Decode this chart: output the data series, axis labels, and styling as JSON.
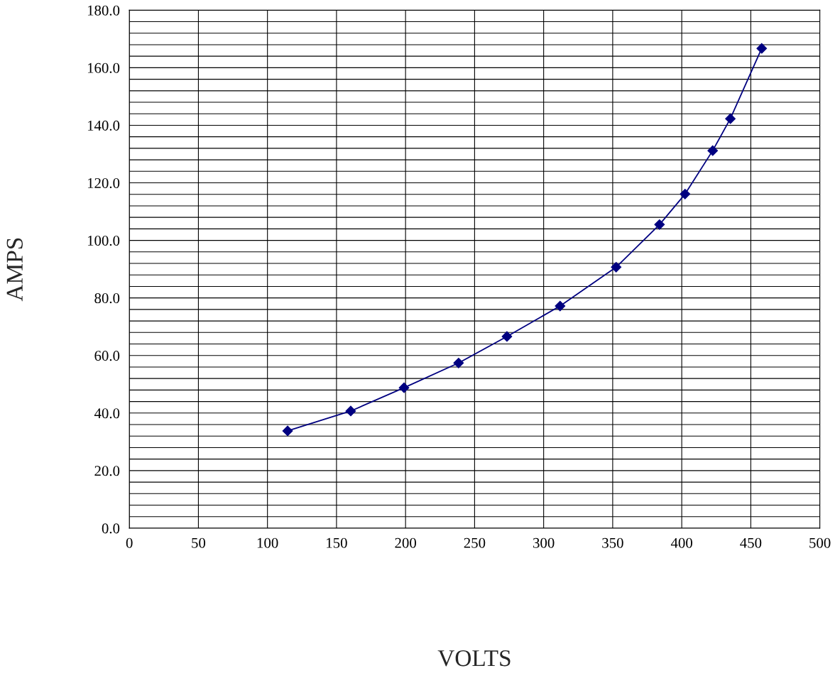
{
  "chart_data": {
    "type": "line",
    "xlabel": "VOLTS",
    "ylabel": "AMPS",
    "x": [
      114.6,
      160.3,
      198.9,
      238.4,
      273.4,
      311.9,
      352.5,
      383.9,
      402.4,
      422.4,
      435.2,
      457.9
    ],
    "series": [
      {
        "color": "#000080",
        "values": [
          33.8,
          40.7,
          48.8,
          57.4,
          66.6,
          77.2,
          90.7,
          105.5,
          116.1,
          131.2,
          142.3,
          166.7
        ]
      }
    ],
    "marker": "diamond",
    "line_style": "solid",
    "grid": true,
    "xlim": [
      0,
      500
    ],
    "xticks": [
      0,
      50,
      100,
      150,
      200,
      250,
      300,
      350,
      400,
      450,
      500
    ],
    "ylim": [
      0,
      180
    ],
    "yticks": [
      {
        "value": 0,
        "label": "0.0"
      },
      {
        "value": 4,
        "label": null
      },
      {
        "value": 8,
        "label": null
      },
      {
        "value": 12,
        "label": null
      },
      {
        "value": 16,
        "label": null
      },
      {
        "value": 20,
        "label": "20.0"
      },
      {
        "value": 24,
        "label": null
      },
      {
        "value": 28,
        "label": null
      },
      {
        "value": 32,
        "label": null
      },
      {
        "value": 36,
        "label": null
      },
      {
        "value": 40,
        "label": "40.0"
      },
      {
        "value": 44,
        "label": null
      },
      {
        "value": 48,
        "label": null
      },
      {
        "value": 52,
        "label": null
      },
      {
        "value": 56,
        "label": null
      },
      {
        "value": 60,
        "label": "60.0"
      },
      {
        "value": 64,
        "label": null
      },
      {
        "value": 68,
        "label": null
      },
      {
        "value": 72,
        "label": null
      },
      {
        "value": 76,
        "label": null
      },
      {
        "value": 80,
        "label": "80.0"
      },
      {
        "value": 84,
        "label": null
      },
      {
        "value": 88,
        "label": null
      },
      {
        "value": 92,
        "label": null
      },
      {
        "value": 96,
        "label": null
      },
      {
        "value": 100,
        "label": "100.0"
      },
      {
        "value": 104,
        "label": null
      },
      {
        "value": 108,
        "label": null
      },
      {
        "value": 112,
        "label": null
      },
      {
        "value": 116,
        "label": null
      },
      {
        "value": 120,
        "label": "120.0"
      },
      {
        "value": 124,
        "label": null
      },
      {
        "value": 128,
        "label": null
      },
      {
        "value": 132,
        "label": null
      },
      {
        "value": 136,
        "label": null
      },
      {
        "value": 140,
        "label": "140.0"
      },
      {
        "value": 144,
        "label": null
      },
      {
        "value": 148,
        "label": null
      },
      {
        "value": 152,
        "label": null
      },
      {
        "value": 156,
        "label": null
      },
      {
        "value": 160,
        "label": "160.0"
      },
      {
        "value": 164,
        "label": null
      },
      {
        "value": 168,
        "label": null
      },
      {
        "value": 172,
        "label": null
      },
      {
        "value": 176,
        "label": null
      },
      {
        "value": 180,
        "label": "180.0"
      }
    ]
  }
}
